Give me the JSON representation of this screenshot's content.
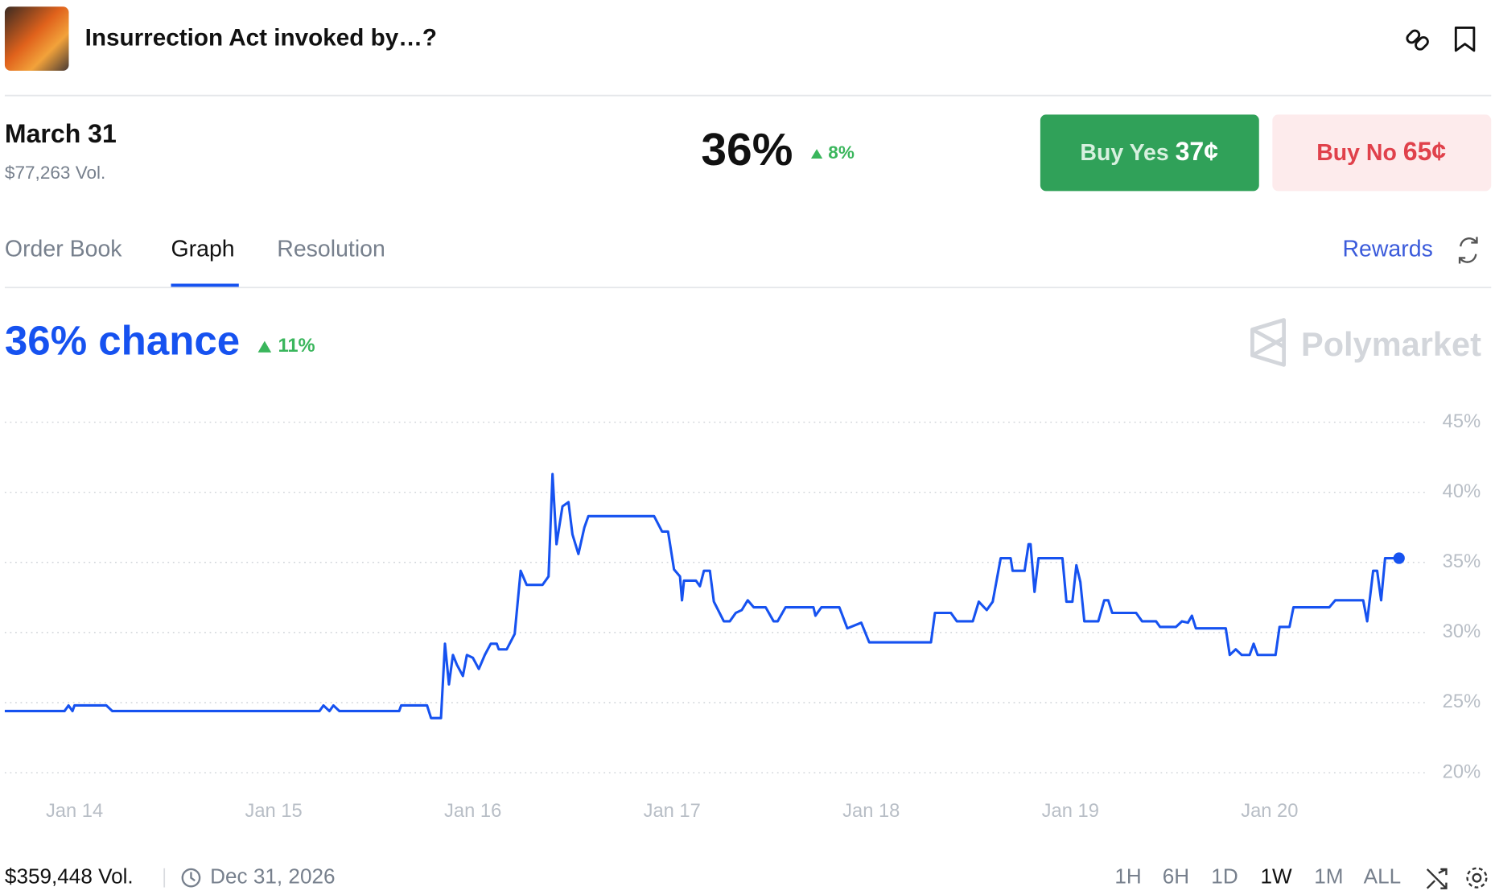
{
  "header": {
    "title": "Insurrection Act invoked by…?"
  },
  "market": {
    "name": "March 31",
    "volume": "$77,263 Vol.",
    "price": "36%",
    "change": "8%",
    "buy_yes": {
      "label": "Buy Yes",
      "price": "37¢"
    },
    "buy_no": {
      "label": "Buy No",
      "price": "65¢"
    }
  },
  "tabs": [
    "Order Book",
    "Graph",
    "Resolution"
  ],
  "rewards": "Rewards",
  "chance": {
    "value": "36% chance",
    "change": "11%"
  },
  "brand": "Polymarket",
  "chart_data": {
    "type": "line",
    "x": [
      13.65,
      13.95,
      13.97,
      13.99,
      14.0,
      14.16,
      14.19,
      15.23,
      15.25,
      15.28,
      15.3,
      15.33,
      15.63,
      15.64,
      15.77,
      15.79,
      15.84,
      15.86,
      15.88,
      15.9,
      15.92,
      15.95,
      15.97,
      16.0,
      16.03,
      16.06,
      16.09,
      16.12,
      16.13,
      16.17,
      16.21,
      16.24,
      16.27,
      16.35,
      16.38,
      16.4,
      16.42,
      16.45,
      16.48,
      16.5,
      16.53,
      16.56,
      16.58,
      16.91,
      16.95,
      16.98,
      17.01,
      17.04,
      17.05,
      17.06,
      17.12,
      17.14,
      17.16,
      17.19,
      17.21,
      17.26,
      17.29,
      17.32,
      17.35,
      17.38,
      17.41,
      17.47,
      17.51,
      17.53,
      17.57,
      17.71,
      17.72,
      17.75,
      17.84,
      17.88,
      17.95,
      17.99,
      18.3,
      18.32,
      18.4,
      18.43,
      18.51,
      18.54,
      18.58,
      18.61,
      18.65,
      18.7,
      18.71,
      18.77,
      18.79,
      18.8,
      18.82,
      18.84,
      18.96,
      18.98,
      19.01,
      19.03,
      19.05,
      19.07,
      19.14,
      19.17,
      19.19,
      19.21,
      19.33,
      19.36,
      19.43,
      19.45,
      19.53,
      19.56,
      19.59,
      19.61,
      19.63,
      19.78,
      19.8,
      19.83,
      19.86,
      19.9,
      19.92,
      19.94,
      20.03,
      20.05,
      20.1,
      20.12,
      20.3,
      20.33,
      20.47,
      20.49,
      20.52,
      20.54,
      20.56,
      20.58,
      20.65
    ],
    "series": [
      {
        "name": "Yes",
        "color": "#1652f0",
        "values": [
          24.4,
          24.4,
          24.8,
          24.4,
          24.8,
          24.8,
          24.4,
          24.4,
          24.8,
          24.4,
          24.8,
          24.4,
          24.4,
          24.8,
          24.8,
          23.9,
          23.9,
          29.2,
          26.3,
          28.4,
          27.7,
          26.9,
          28.4,
          28.2,
          27.4,
          28.4,
          29.2,
          29.2,
          28.8,
          28.8,
          29.9,
          34.4,
          33.4,
          33.4,
          34.0,
          41.3,
          36.3,
          39.0,
          39.3,
          37.0,
          35.6,
          37.5,
          38.3,
          38.3,
          37.2,
          37.2,
          34.5,
          34.0,
          32.3,
          33.7,
          33.7,
          33.3,
          34.4,
          34.4,
          32.2,
          30.8,
          30.8,
          31.4,
          31.6,
          32.3,
          31.8,
          31.8,
          30.8,
          30.8,
          31.8,
          31.8,
          31.2,
          31.8,
          31.8,
          30.3,
          30.7,
          29.3,
          29.3,
          31.4,
          31.4,
          30.8,
          30.8,
          32.2,
          31.6,
          32.2,
          35.3,
          35.3,
          34.4,
          34.4,
          36.3,
          36.3,
          32.9,
          35.3,
          35.3,
          32.2,
          32.2,
          34.8,
          33.6,
          30.8,
          30.8,
          32.3,
          32.3,
          31.4,
          31.4,
          30.8,
          30.8,
          30.4,
          30.4,
          30.8,
          30.7,
          31.2,
          30.3,
          30.3,
          28.4,
          28.8,
          28.4,
          28.4,
          29.2,
          28.4,
          28.4,
          30.4,
          30.4,
          31.8,
          31.8,
          32.3,
          32.3,
          30.8,
          34.4,
          34.4,
          32.3,
          35.3,
          35.3
        ]
      }
    ],
    "xlim": [
      13.65,
      20.82
    ],
    "xticks": [
      {
        "value": 14,
        "label": "Jan 14"
      },
      {
        "value": 15,
        "label": "Jan 15"
      },
      {
        "value": 16,
        "label": "Jan 16"
      },
      {
        "value": 17,
        "label": "Jan 17"
      },
      {
        "value": 18,
        "label": "Jan 18"
      },
      {
        "value": 19,
        "label": "Jan 19"
      },
      {
        "value": 20,
        "label": "Jan 20"
      }
    ],
    "ylim": [
      20,
      45
    ],
    "yticks": [
      {
        "value": 20,
        "label": "20%"
      },
      {
        "value": 25,
        "label": "25%"
      },
      {
        "value": 30,
        "label": "30%"
      },
      {
        "value": 35,
        "label": "35%"
      },
      {
        "value": 40,
        "label": "40%"
      },
      {
        "value": 45,
        "label": "45%"
      }
    ],
    "grid": true
  },
  "footer": {
    "volume": "$359,448 Vol.",
    "date": "Dec 31, 2026",
    "ranges": [
      "1H",
      "6H",
      "1D",
      "1W",
      "1M",
      "ALL"
    ]
  }
}
